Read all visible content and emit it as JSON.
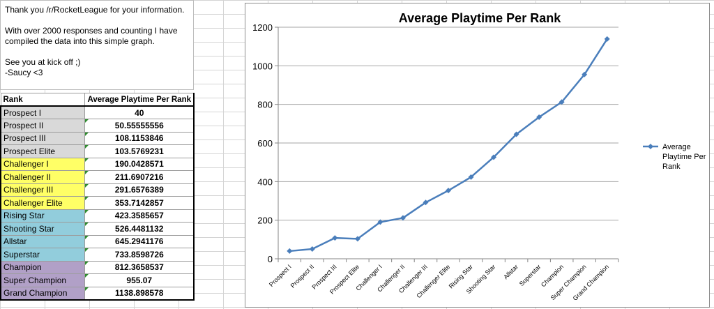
{
  "note": {
    "line1": "Thank you /r/RocketLeague for your information.",
    "line2": "With over 2000  responses and counting I have compiled the data into this simple graph.",
    "line3": "See you at kick off ;)",
    "line4": "-Saucy <3"
  },
  "table": {
    "headers": [
      "Rank",
      "Average Playtime Per Rank"
    ],
    "rows": [
      {
        "rank": "Prospect I",
        "value": "40",
        "fill": "#d9d9d9"
      },
      {
        "rank": "Prospect II",
        "value": "50.55555556",
        "fill": "#d9d9d9"
      },
      {
        "rank": "Prospect III",
        "value": "108.1153846",
        "fill": "#d9d9d9"
      },
      {
        "rank": "Prospect Elite",
        "value": "103.5769231",
        "fill": "#d9d9d9"
      },
      {
        "rank": "Challenger I",
        "value": "190.0428571",
        "fill": "#ffff66"
      },
      {
        "rank": "Challenger II",
        "value": "211.6907216",
        "fill": "#ffff66"
      },
      {
        "rank": "Challenger III",
        "value": "291.6576389",
        "fill": "#ffff66"
      },
      {
        "rank": "Challenger Elite",
        "value": "353.7142857",
        "fill": "#ffff66"
      },
      {
        "rank": "Rising Star",
        "value": "423.3585657",
        "fill": "#92cddc"
      },
      {
        "rank": "Shooting Star",
        "value": "526.4481132",
        "fill": "#92cddc"
      },
      {
        "rank": "Allstar",
        "value": "645.2941176",
        "fill": "#92cddc"
      },
      {
        "rank": "Superstar",
        "value": "733.8598726",
        "fill": "#92cddc"
      },
      {
        "rank": "Champion",
        "value": "812.3658537",
        "fill": "#b1a0c7"
      },
      {
        "rank": "Super Champion",
        "value": "955.07",
        "fill": "#b1a0c7"
      },
      {
        "rank": "Grand Champion",
        "value": "1138.898578",
        "fill": "#b1a0c7"
      }
    ]
  },
  "chart_data": {
    "type": "line",
    "title": "Average Playtime Per Rank",
    "categories": [
      "Prospect I",
      "Prospect II",
      "Prospect III",
      "Prospect Elite",
      "Challenger I",
      "Challenger II",
      "Challenger III",
      "Challenger Elite",
      "Rising Star",
      "Shooting Star",
      "Allstar",
      "Superstar",
      "Champion",
      "Super Champion",
      "Grand Champion"
    ],
    "series": [
      {
        "name": "Average Playtime Per Rank",
        "values": [
          40,
          50.56,
          108.12,
          103.58,
          190.04,
          211.69,
          291.66,
          353.71,
          423.36,
          526.45,
          645.29,
          733.86,
          812.37,
          955.07,
          1138.9
        ],
        "color": "#4a7ebb"
      }
    ],
    "ylim": [
      0,
      1200
    ],
    "yticks": [
      0,
      200,
      400,
      600,
      800,
      1000,
      1200
    ],
    "grid": "horizontal",
    "legend": "right",
    "legend_lines": [
      "Average",
      "Playtime Per",
      "Rank"
    ]
  }
}
